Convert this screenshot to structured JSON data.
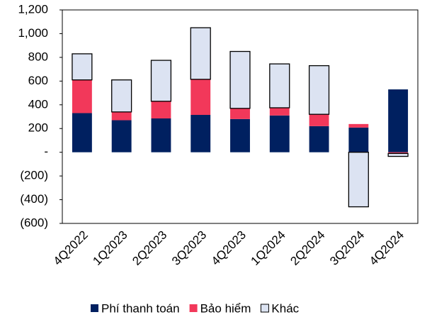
{
  "chart_data": {
    "type": "stacked_bar",
    "categories": [
      "4Q2022",
      "1Q2023",
      "2Q2023",
      "3Q2023",
      "4Q2023",
      "1Q2024",
      "2Q2024",
      "3Q2024",
      "4Q2024"
    ],
    "series": [
      {
        "name": "Phí thanh toán",
        "color": "#002060",
        "values": [
          330,
          270,
          285,
          315,
          280,
          310,
          220,
          208,
          530
        ]
      },
      {
        "name": "Bảo hiểm",
        "color": "#f2385a",
        "values": [
          280,
          70,
          145,
          300,
          90,
          65,
          100,
          30,
          -10
        ]
      },
      {
        "name": "Khác",
        "color": "#dce3f2",
        "values": [
          220,
          270,
          345,
          435,
          480,
          370,
          410,
          -460,
          -25
        ]
      }
    ],
    "ylim": [
      -600,
      1200
    ],
    "yticks": [
      {
        "value": -600,
        "label": "(600)"
      },
      {
        "value": -400,
        "label": "(400)"
      },
      {
        "value": -200,
        "label": "(200)"
      },
      {
        "value": 0,
        "label": "-"
      },
      200,
      400,
      600,
      800,
      {
        "value": 1000,
        "label": "1,000"
      },
      {
        "value": 1200,
        "label": "1,200"
      }
    ]
  }
}
